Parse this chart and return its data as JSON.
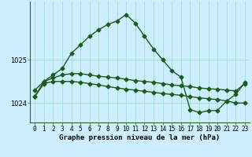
{
  "title": "Graphe pression niveau de la mer (hPa)",
  "background_color": "#cceeff",
  "grid_color": "#99dddd",
  "line_color": "#1a5c1a",
  "spine_color": "#2d6a2d",
  "xlim": [
    -0.5,
    23.5
  ],
  "ylim": [
    1023.55,
    1026.35
  ],
  "yticks": [
    1024,
    1025
  ],
  "xticks": [
    0,
    1,
    2,
    3,
    4,
    5,
    6,
    7,
    8,
    9,
    10,
    11,
    12,
    13,
    14,
    15,
    16,
    17,
    18,
    19,
    20,
    21,
    22,
    23
  ],
  "line1": [
    1024.15,
    1024.45,
    1024.5,
    1024.5,
    1024.5,
    1024.48,
    1024.45,
    1024.42,
    1024.38,
    1024.35,
    1024.32,
    1024.3,
    1024.27,
    1024.25,
    1024.22,
    1024.2,
    1024.18,
    1024.15,
    1024.12,
    1024.1,
    1024.08,
    1024.05,
    1024.0,
    1024.0
  ],
  "line2": [
    1024.3,
    1024.5,
    1024.58,
    1024.65,
    1024.68,
    1024.68,
    1024.65,
    1024.62,
    1024.6,
    1024.58,
    1024.55,
    1024.52,
    1024.5,
    1024.48,
    1024.45,
    1024.42,
    1024.4,
    1024.38,
    1024.35,
    1024.33,
    1024.32,
    1024.3,
    1024.28,
    1024.45
  ],
  "line3": [
    1024.15,
    1024.5,
    1024.65,
    1024.8,
    1025.15,
    1025.35,
    1025.55,
    1025.7,
    1025.82,
    1025.9,
    1026.05,
    1025.85,
    1025.55,
    1025.25,
    1025.0,
    1024.75,
    1024.6,
    1023.85,
    1023.78,
    1023.82,
    1023.83,
    1024.05,
    1024.2,
    1024.48
  ],
  "marker": "D",
  "markersize": 2.5,
  "linewidth": 1.0,
  "title_fontsize": 6.5,
  "tick_fontsize": 5.5
}
